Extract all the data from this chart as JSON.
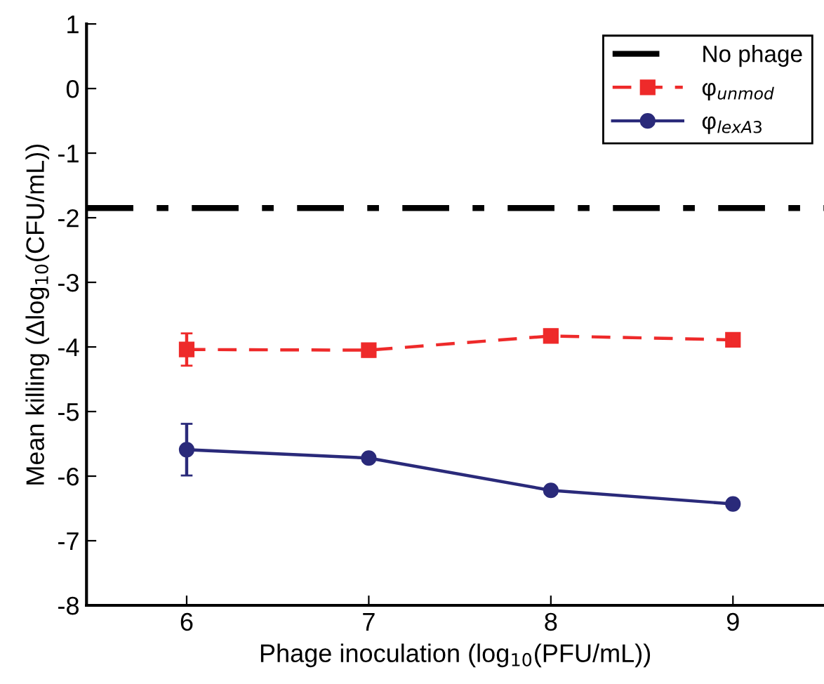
{
  "chart_data": {
    "type": "line",
    "xlabel": "Phage inoculation (log$_{10}$(PFU/mL))",
    "ylabel": "Mean killing (Δlog$_{10}$(CFU/mL))",
    "x": [
      6,
      7,
      8,
      9
    ],
    "series": [
      {
        "name": "φ$_{unmod}$",
        "color": "#ee2a2a",
        "values": [
          -4.04,
          -4.05,
          -3.83,
          -3.89
        ],
        "errors": [
          0.25,
          0.1,
          0.1,
          0.07
        ],
        "marker": "square",
        "line_style": "dashed"
      },
      {
        "name": "φ$_{lexA3}$",
        "color": "#2a2a7a",
        "values": [
          -5.59,
          -5.72,
          -6.22,
          -6.43
        ],
        "errors": [
          0.4,
          null,
          null,
          null
        ],
        "marker": "circle",
        "line_style": "solid"
      }
    ],
    "ref_lines": [
      {
        "axis": "y",
        "value": -1.85,
        "label": "No phage",
        "color": "#000000",
        "line_style": "dashdot"
      }
    ],
    "xlim": [
      5.45,
      9.5
    ],
    "ylim": [
      -8,
      1
    ],
    "xticks": [
      6,
      7,
      8,
      9
    ],
    "yticks": [
      -8,
      -7,
      -6,
      -5,
      -4,
      -3,
      -2,
      -1,
      0,
      1
    ],
    "grid": false,
    "legend": "top right"
  }
}
